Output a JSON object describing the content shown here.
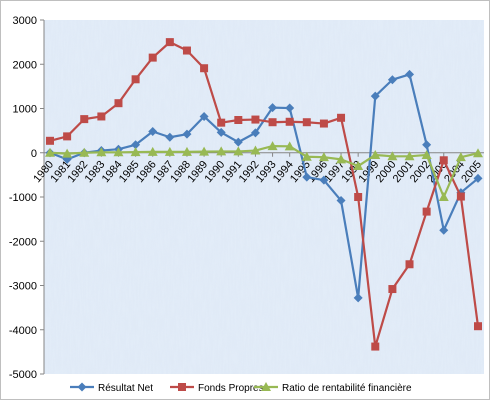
{
  "chart_data": {
    "type": "line",
    "title": "",
    "xlabel": "",
    "ylabel": "",
    "ylim": [
      -5000,
      3000
    ],
    "y_ticks": [
      3000,
      2000,
      1000,
      0,
      -1000,
      -2000,
      -3000,
      -4000,
      -5000
    ],
    "grid": false,
    "legend_position": "bottom",
    "categories": [
      "1980",
      "1981",
      "1982",
      "1983",
      "1984",
      "1985",
      "1986",
      "1987",
      "1988",
      "1989",
      "1990",
      "1991",
      "1992",
      "1993",
      "1994",
      "1995",
      "1996",
      "1997",
      "1998",
      "1999",
      "2000",
      "2001",
      "2002",
      "2003",
      "2004",
      "2005"
    ],
    "series": [
      {
        "name": "Résultat Net",
        "color": "#4a7ebb",
        "marker": "diamond",
        "values": [
          0,
          -150,
          0,
          50,
          80,
          180,
          480,
          350,
          420,
          820,
          460,
          240,
          450,
          1020,
          1010,
          -550,
          -620,
          -1080,
          -3280,
          1280,
          1650,
          1770,
          180,
          -1750,
          -900,
          -580
        ]
      },
      {
        "name": "Fonds Propres",
        "color": "#be4b48",
        "marker": "square",
        "values": [
          270,
          370,
          760,
          820,
          1120,
          1660,
          2150,
          2500,
          2310,
          1910,
          680,
          740,
          750,
          690,
          700,
          690,
          660,
          790,
          -1000,
          -4380,
          -3080,
          -2520,
          -1330,
          -170,
          -990,
          -3920
        ]
      },
      {
        "name": "Ratio de rentabilité financière",
        "color": "#98b954",
        "marker": "triangle",
        "values": [
          0,
          -20,
          0,
          10,
          10,
          15,
          20,
          20,
          20,
          25,
          30,
          30,
          50,
          150,
          145,
          -90,
          -100,
          -150,
          -300,
          -50,
          -80,
          -80,
          -50,
          -1000,
          -100,
          -10
        ]
      }
    ]
  }
}
